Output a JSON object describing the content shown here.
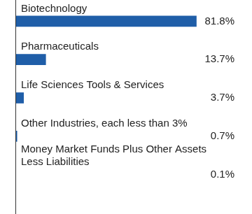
{
  "chart_data": {
    "type": "bar",
    "orientation": "horizontal",
    "categories": [
      "Biotechnology",
      "Pharmaceuticals",
      "Life Sciences Tools & Services",
      "Other Industries, each less than 3%",
      "Money Market Funds Plus Other Assets Less Liabilities"
    ],
    "values": [
      81.8,
      13.7,
      3.7,
      0.7,
      0.1
    ],
    "value_labels": [
      "81.8%",
      "13.7%",
      "3.7%",
      "0.7%",
      "0.1%"
    ],
    "data_labels": true,
    "color": "#1f5ea8",
    "xlim": [
      0,
      100
    ],
    "grid": false,
    "tick_labels": false
  }
}
